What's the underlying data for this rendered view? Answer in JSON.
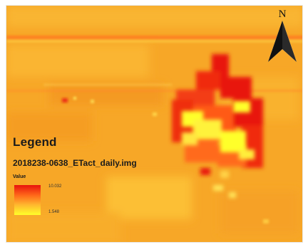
{
  "map": {
    "north_label": "N",
    "north_arrow_icon": "north-arrow-icon",
    "colors": {
      "high": "#e8120c",
      "mid_high": "#ff6a1a",
      "mid_low": "#ffb52e",
      "low": "#ffff2a",
      "background": "#f7a727"
    }
  },
  "legend": {
    "title": "Legend",
    "layer_name": "2018238-0638_ETact_daily.img",
    "field_label": "Value",
    "ramp_high": "10.032",
    "ramp_low": "1.548"
  }
}
